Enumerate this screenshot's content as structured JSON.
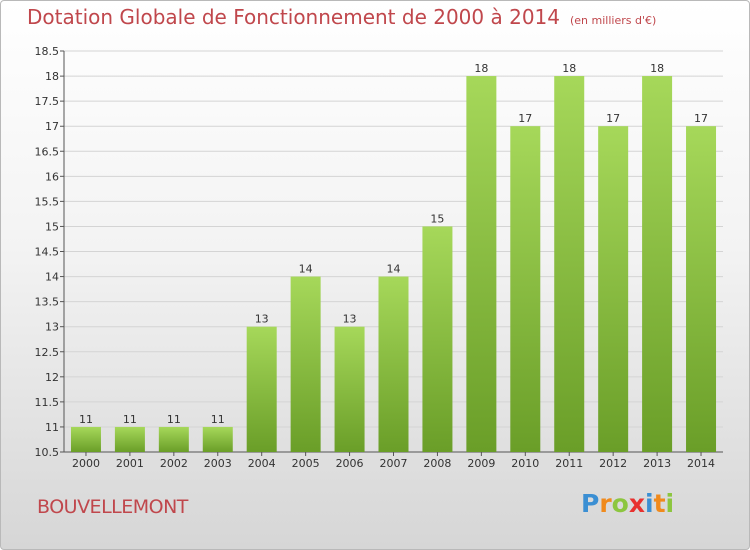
{
  "header": {
    "title": "Dotation Globale de Fonctionnement de 2000 à 2014",
    "subtitle": "(en milliers d'€)"
  },
  "footer": {
    "commune": "BOUVELLEMONT",
    "logo": {
      "letters": [
        "P",
        "r",
        "o",
        "x",
        "i",
        "t",
        "i"
      ],
      "colors": [
        "#3b8fd3",
        "#f08a1c",
        "#8cc63f",
        "#e8312f",
        "#3b8fd3",
        "#f08a1c",
        "#8cc63f"
      ]
    }
  },
  "chart_data": {
    "type": "bar",
    "title": "Dotation Globale de Fonctionnement de 2000 à 2014",
    "subtitle": "(en milliers d'€)",
    "categories": [
      "2000",
      "2001",
      "2002",
      "2003",
      "2004",
      "2005",
      "2006",
      "2007",
      "2008",
      "2009",
      "2010",
      "2011",
      "2012",
      "2013",
      "2014"
    ],
    "values": [
      11,
      11,
      11,
      11,
      13,
      14,
      13,
      14,
      15,
      18,
      17,
      18,
      17,
      18,
      17
    ],
    "data_labels": [
      "11",
      "11",
      "11",
      "11",
      "13",
      "14",
      "13",
      "14",
      "15",
      "18",
      "17",
      "18",
      "17",
      "18",
      "17"
    ],
    "ylim": [
      10.5,
      18.5
    ],
    "yticks": [
      10.5,
      11,
      11.5,
      12,
      12.5,
      13,
      13.5,
      14,
      14.5,
      15,
      15.5,
      16,
      16.5,
      17,
      17.5,
      18,
      18.5
    ],
    "ytick_labels": [
      "10.5",
      "11",
      "11.5",
      "12",
      "12.5",
      "13",
      "13.5",
      "14",
      "14.5",
      "15",
      "15.5",
      "16",
      "16.5",
      "17",
      "17.5",
      "18",
      "18.5"
    ],
    "grid": true,
    "bar_color": "#8cc63f",
    "bar_color_light": "#a6d85a",
    "bar_color_dark": "#6a9e28",
    "grid_color": "#d4d4d4"
  }
}
